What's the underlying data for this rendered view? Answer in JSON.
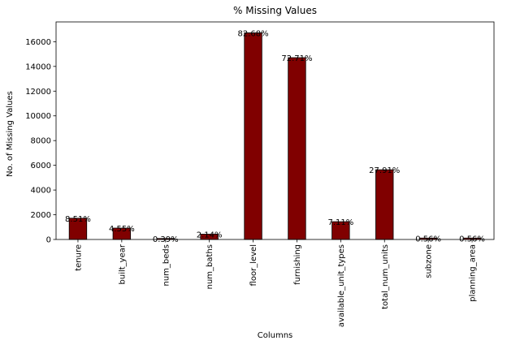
{
  "chart_data": {
    "type": "bar",
    "title": "% Missing Values",
    "xlabel": "Columns",
    "ylabel": "No. of Missing Values",
    "categories": [
      "tenure",
      "built_year",
      "num_beds",
      "num_baths",
      "floor_level",
      "furnishing",
      "available_unit_types",
      "total_num_units",
      "subzone",
      "planning_area"
    ],
    "values": [
      1720,
      920,
      80,
      430,
      16720,
      14710,
      1440,
      5640,
      115,
      115
    ],
    "data_labels": [
      "8.51%",
      "4.55%",
      "0.39%",
      "2.14%",
      "82.68%",
      "72.71%",
      "7.11%",
      "27.91%",
      "0.56%",
      "0.56%"
    ],
    "ylim": [
      0,
      17600
    ],
    "yticks": [
      0,
      2000,
      4000,
      6000,
      8000,
      10000,
      12000,
      14000,
      16000
    ],
    "bar_color": "#800000",
    "bar_edge_color": "#000000",
    "grid": false,
    "legend": "none"
  }
}
